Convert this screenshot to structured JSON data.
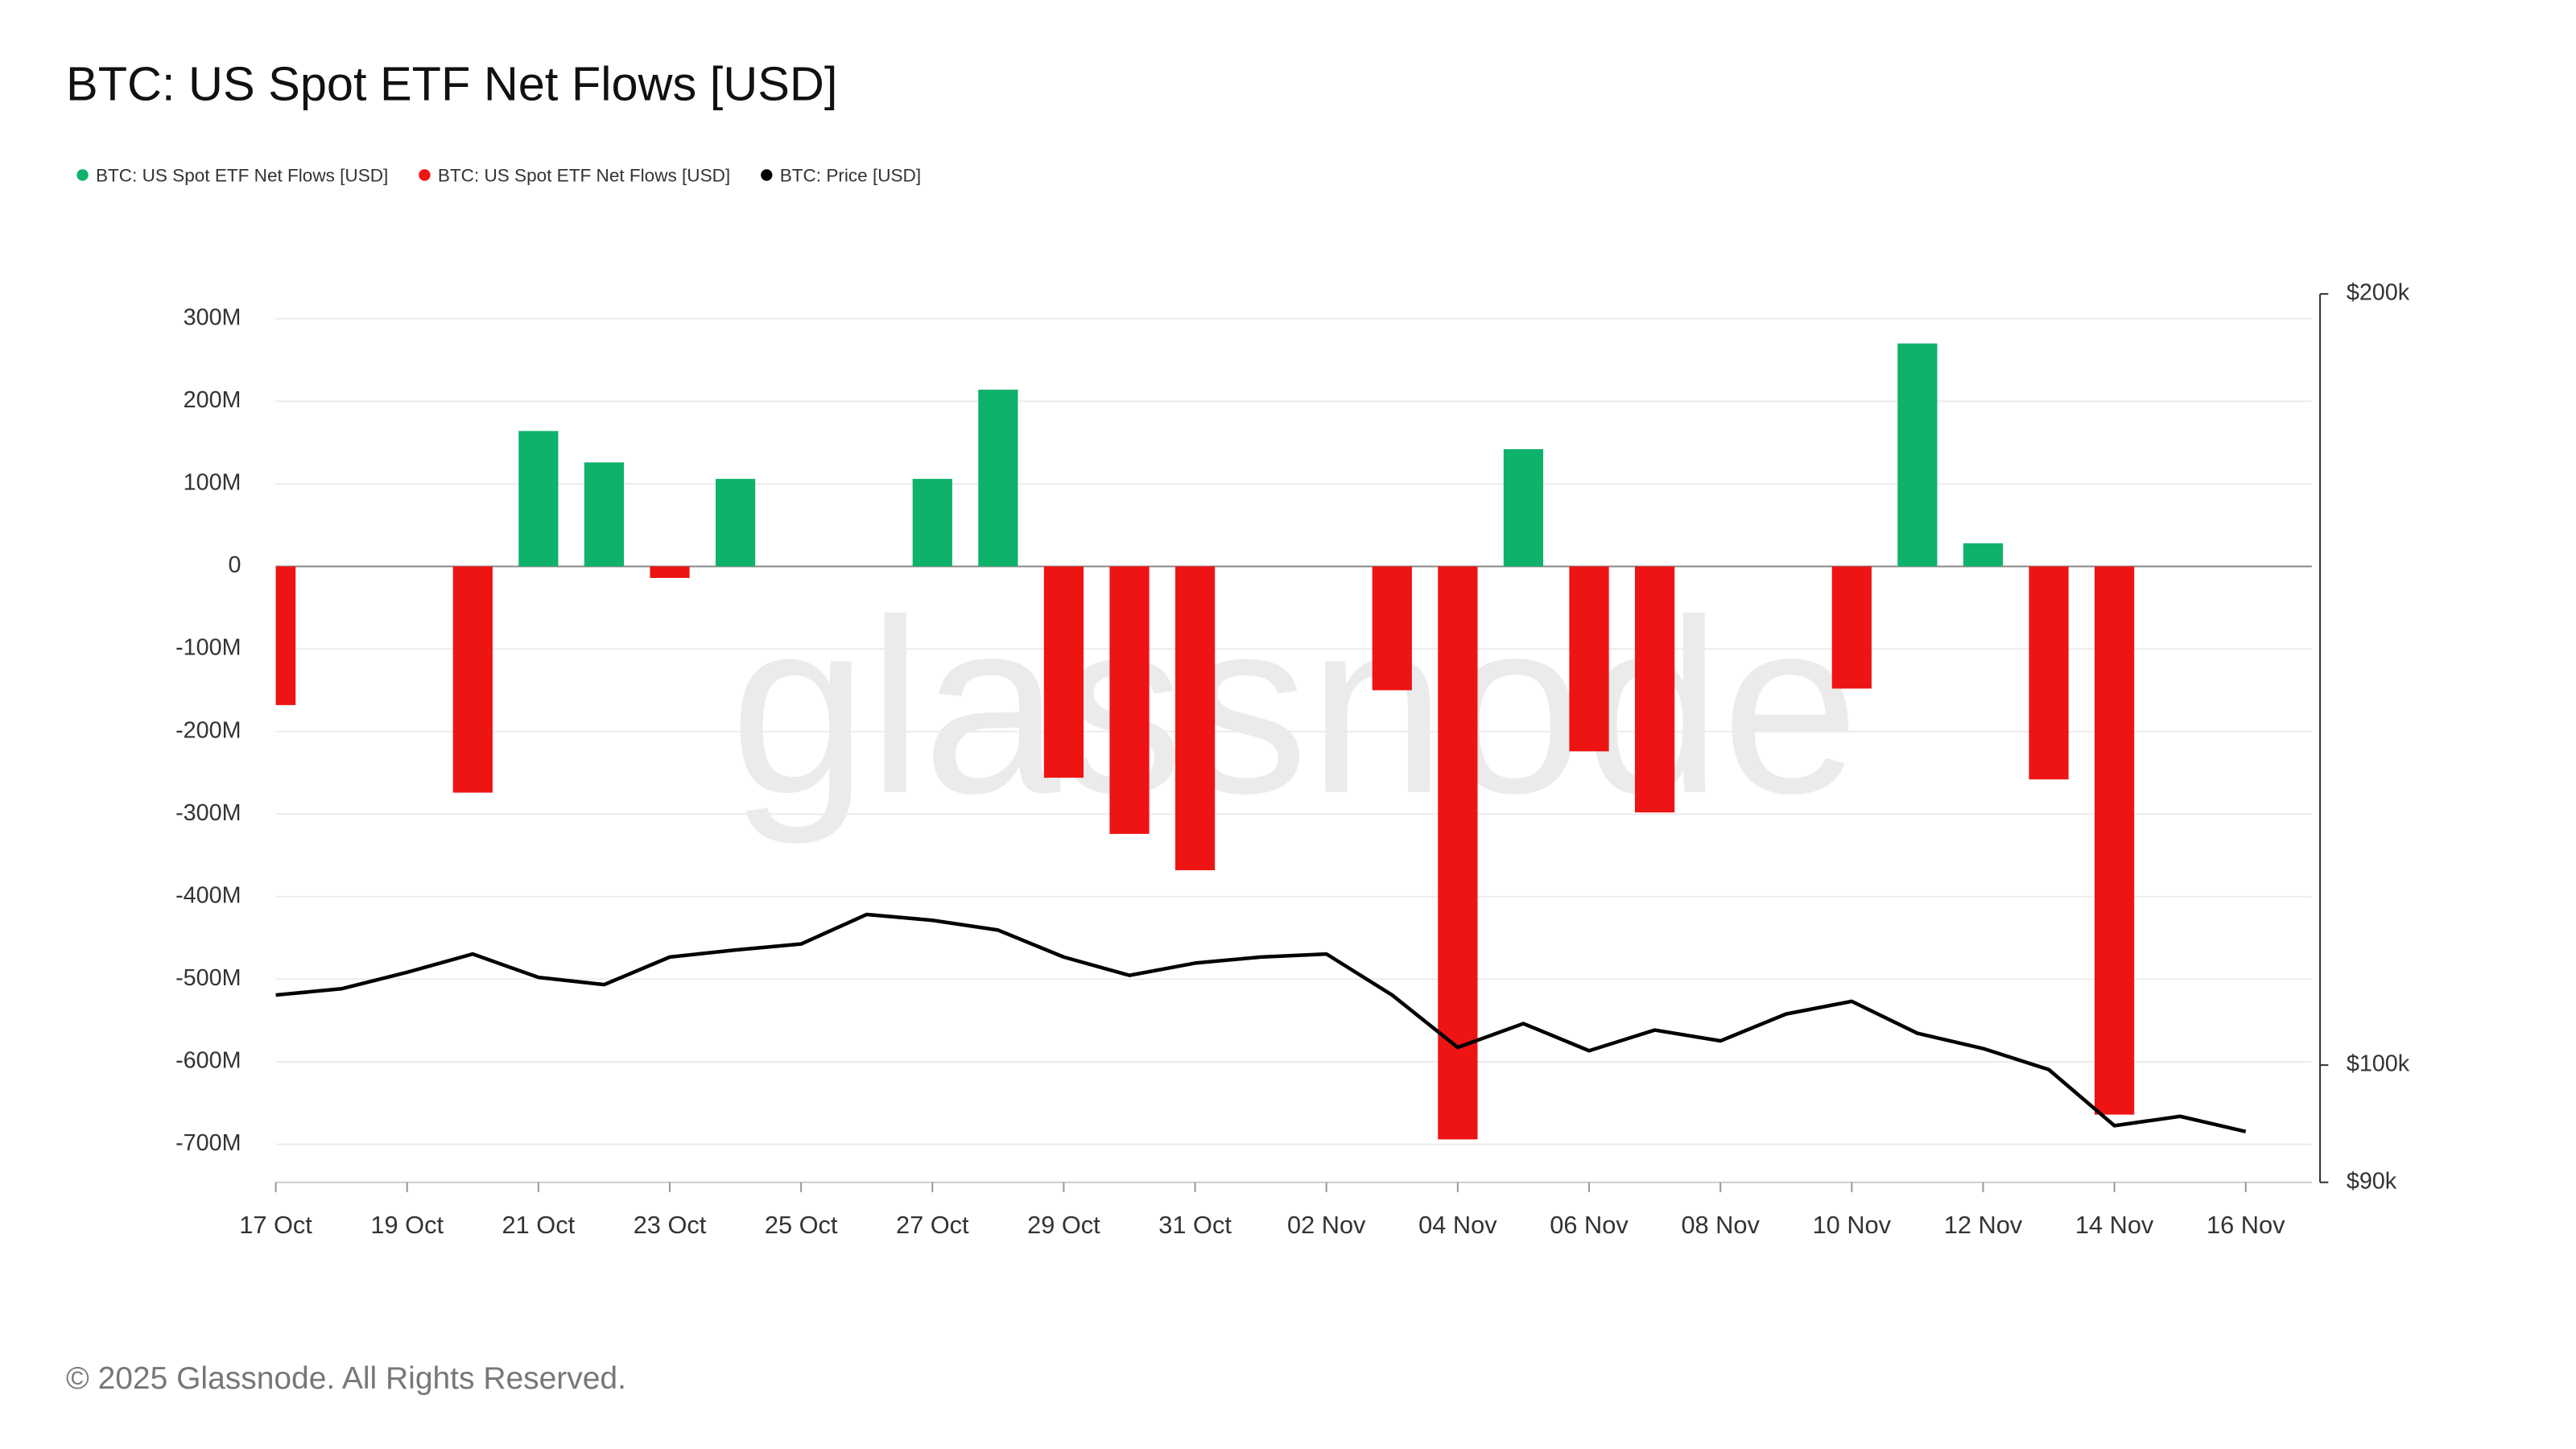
{
  "chart_data": {
    "type": "bar",
    "title": "BTC: US Spot ETF Net Flows [USD]",
    "watermark": "glassnode",
    "footer": "© 2025 Glassnode. All Rights Reserved.",
    "categories": [
      "17 Oct",
      null,
      "19 Oct",
      null,
      "21 Oct",
      null,
      "23 Oct",
      null,
      "25 Oct",
      null,
      "27 Oct",
      null,
      "29 Oct",
      null,
      "31 Oct",
      null,
      "02 Nov",
      null,
      "04 Nov",
      null,
      "06 Nov",
      null,
      "08 Nov",
      null,
      "10 Nov",
      null,
      "12 Nov",
      null,
      "14 Nov",
      null,
      "16 Nov"
    ],
    "series": [
      {
        "name": "BTC: US Spot ETF Net Flows [USD]",
        "color": "#0fb26a",
        "type": "bar",
        "values": [
          null,
          null,
          null,
          null,
          164000000,
          126000000,
          null,
          106000000,
          null,
          null,
          106000000,
          214000000,
          null,
          null,
          null,
          null,
          null,
          null,
          null,
          142000000,
          null,
          null,
          null,
          null,
          null,
          270000000,
          28000000,
          null,
          null,
          null,
          null
        ]
      },
      {
        "name": "BTC: US Spot ETF Net Flows [USD]",
        "color": "#ee1414",
        "type": "bar",
        "values": [
          -168000000,
          null,
          null,
          -274000000,
          null,
          null,
          -14000000,
          null,
          null,
          null,
          null,
          null,
          -256000000,
          -324000000,
          -368000000,
          null,
          null,
          -150000000,
          -694000000,
          null,
          -224000000,
          -298000000,
          null,
          null,
          -148000000,
          null,
          null,
          -258000000,
          -664000000,
          null,
          null
        ]
      },
      {
        "name": "BTC: Price [USD]",
        "color": "#000000",
        "type": "line",
        "axis": "y2",
        "values": [
          106500,
          107100,
          108700,
          110500,
          108200,
          107500,
          110200,
          110900,
          111500,
          114500,
          113900,
          112900,
          110200,
          108400,
          109600,
          110200,
          110500,
          106500,
          101600,
          103800,
          101300,
          103200,
          102200,
          104700,
          105900,
          102900,
          101500,
          99600,
          94700,
          95500,
          94200
        ]
      }
    ],
    "ylim": [
      -746000000,
      330000000
    ],
    "yticks": [
      {
        "value": 300000000,
        "label": "300M"
      },
      {
        "value": 200000000,
        "label": "200M"
      },
      {
        "value": 100000000,
        "label": "100M"
      },
      0,
      {
        "value": -100000000,
        "label": "-100M"
      },
      {
        "value": -200000000,
        "label": "-200M"
      },
      {
        "value": -300000000,
        "label": "-300M"
      },
      {
        "value": -400000000,
        "label": "-400M"
      },
      {
        "value": -500000000,
        "label": "-500M"
      },
      {
        "value": -600000000,
        "label": "-600M"
      },
      {
        "value": -700000000,
        "label": "-700M"
      }
    ],
    "y2lim": [
      90000,
      200000
    ],
    "y2ticks": [
      {
        "value": 200000,
        "label": "$200k"
      },
      {
        "value": 100000,
        "label": "$100k"
      },
      {
        "value": 90000,
        "label": "$90k"
      }
    ],
    "y2log": true,
    "grid": true,
    "legend": "top-left"
  }
}
